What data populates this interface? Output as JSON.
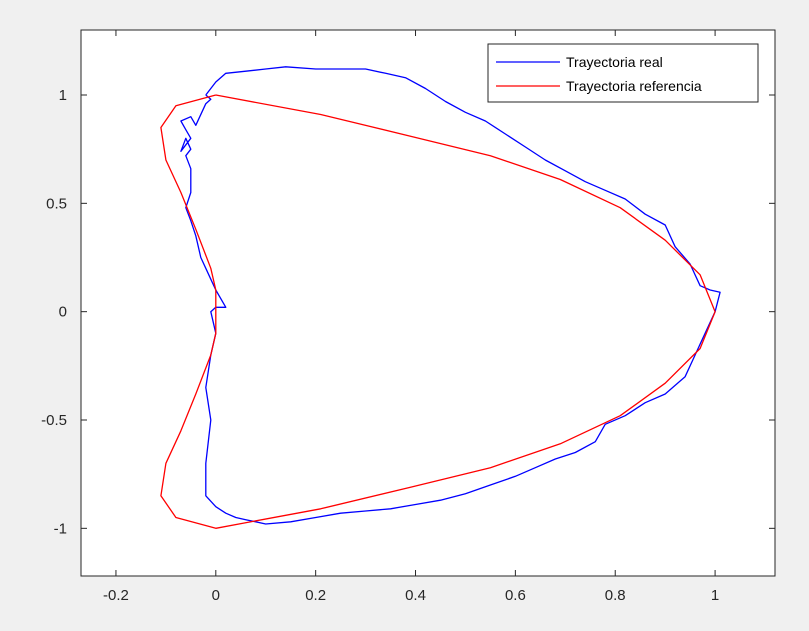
{
  "chart_data": {
    "type": "line",
    "title": "",
    "xlabel": "",
    "ylabel": "",
    "xlim": [
      -0.27,
      1.12
    ],
    "ylim": [
      -1.22,
      1.3
    ],
    "xticks": [
      -0.2,
      0,
      0.2,
      0.4,
      0.6,
      0.8,
      1
    ],
    "xtick_labels": [
      "-0.2",
      "0",
      "0.2",
      "0.4",
      "0.6",
      "0.8",
      "1"
    ],
    "yticks": [
      -1,
      -0.5,
      0,
      0.5,
      1
    ],
    "ytick_labels": [
      "-1",
      "-0.5",
      "0",
      "0.5",
      "1"
    ],
    "grid": false,
    "legend_location": "top-right",
    "series": [
      {
        "name": "Trayectoria real",
        "color": "#0000ff",
        "x": [
          -0.02,
          0.0,
          0.02,
          0.06,
          0.1,
          0.14,
          0.2,
          0.26,
          0.3,
          0.34,
          0.38,
          0.42,
          0.46,
          0.5,
          0.54,
          0.58,
          0.62,
          0.66,
          0.7,
          0.74,
          0.78,
          0.82,
          0.86,
          0.9,
          0.92,
          0.95,
          0.97,
          0.99,
          1.01,
          1.0,
          0.98,
          0.96,
          0.94,
          0.9,
          0.86,
          0.82,
          0.78,
          0.76,
          0.72,
          0.68,
          0.64,
          0.6,
          0.55,
          0.5,
          0.45,
          0.4,
          0.35,
          0.3,
          0.25,
          0.2,
          0.15,
          0.1,
          0.06,
          0.04,
          0.02,
          0.0,
          -0.02,
          -0.02,
          -0.01,
          -0.02,
          -0.01,
          0.0,
          -0.01,
          0.0,
          0.02,
          0.0,
          -0.01,
          -0.02,
          -0.03,
          -0.04,
          -0.05,
          -0.06,
          -0.05,
          -0.05,
          -0.05,
          -0.06,
          -0.05,
          -0.06,
          -0.07,
          -0.05,
          -0.06,
          -0.07,
          -0.05,
          -0.04,
          -0.02,
          -0.01,
          -0.02,
          -0.02
        ],
        "y": [
          1.0,
          1.06,
          1.1,
          1.11,
          1.12,
          1.13,
          1.12,
          1.12,
          1.12,
          1.1,
          1.08,
          1.03,
          0.97,
          0.92,
          0.88,
          0.82,
          0.76,
          0.7,
          0.65,
          0.6,
          0.56,
          0.52,
          0.45,
          0.4,
          0.3,
          0.22,
          0.12,
          0.1,
          0.09,
          0.0,
          -0.1,
          -0.2,
          -0.3,
          -0.38,
          -0.42,
          -0.48,
          -0.52,
          -0.6,
          -0.65,
          -0.68,
          -0.72,
          -0.76,
          -0.8,
          -0.84,
          -0.87,
          -0.89,
          -0.91,
          -0.92,
          -0.93,
          -0.95,
          -0.97,
          -0.98,
          -0.96,
          -0.95,
          -0.93,
          -0.9,
          -0.85,
          -0.7,
          -0.5,
          -0.35,
          -0.2,
          -0.1,
          0.0,
          0.02,
          0.02,
          0.1,
          0.15,
          0.2,
          0.25,
          0.35,
          0.42,
          0.48,
          0.55,
          0.62,
          0.66,
          0.72,
          0.75,
          0.8,
          0.74,
          0.8,
          0.84,
          0.88,
          0.9,
          0.86,
          0.96,
          0.98,
          1.0,
          1.0
        ]
      },
      {
        "name": "Trayectoria referencia",
        "color": "#ff0000",
        "x": [
          0.0,
          0.21,
          0.39,
          0.55,
          0.69,
          0.81,
          0.9,
          0.97,
          1.0,
          0.97,
          0.9,
          0.81,
          0.69,
          0.55,
          0.39,
          0.21,
          0.0,
          -0.08,
          -0.11,
          -0.1,
          -0.07,
          -0.04,
          -0.01,
          0.0,
          0.0,
          0.0,
          -0.01,
          -0.04,
          -0.07,
          -0.1,
          -0.11,
          -0.08,
          0.0
        ],
        "y": [
          1.0,
          0.91,
          0.81,
          0.72,
          0.61,
          0.48,
          0.33,
          0.17,
          0.0,
          -0.17,
          -0.33,
          -0.48,
          -0.61,
          -0.72,
          -0.81,
          -0.91,
          -1.0,
          -0.95,
          -0.85,
          -0.7,
          -0.55,
          -0.38,
          -0.2,
          -0.1,
          0.0,
          0.1,
          0.2,
          0.38,
          0.55,
          0.7,
          0.85,
          0.95,
          1.0
        ]
      }
    ]
  }
}
